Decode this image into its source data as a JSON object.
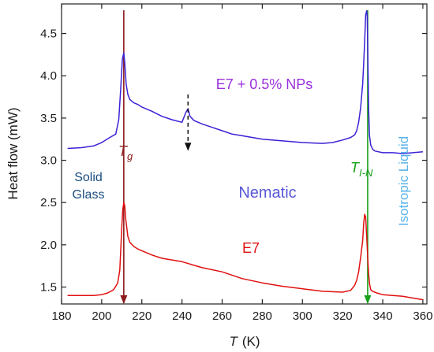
{
  "chart_data": {
    "type": "line",
    "xlabel_symbol": "T",
    "xlabel_unit": "(K)",
    "ylabel": "Heat flow (mW)",
    "xlim": [
      180,
      362
    ],
    "ylim": [
      1.3,
      4.85
    ],
    "x_ticks": [
      "180",
      "200",
      "220",
      "240",
      "260",
      "280",
      "300",
      "320",
      "340",
      "360"
    ],
    "y_ticks": [
      "1.5",
      "2.0",
      "2.5",
      "3.0",
      "3.5",
      "4.0",
      "4.5"
    ],
    "series": [
      {
        "name": "E7 + 0.5% NPs",
        "color": "#3a22d6",
        "x": [
          183,
          190,
          196,
          200,
          204,
          207,
          208.5,
          209.5,
          210.3,
          211,
          211.5,
          212.2,
          213,
          214,
          216,
          218,
          220,
          225,
          230,
          235,
          240,
          242,
          243,
          244,
          246,
          250,
          255,
          260,
          265,
          270,
          280,
          290,
          300,
          310,
          315,
          320,
          324,
          326,
          327,
          328,
          329,
          330,
          330.5,
          331,
          331.5,
          332,
          332.3,
          332.6,
          333,
          333.4,
          334,
          335,
          336,
          338,
          340,
          345,
          350,
          355,
          360
        ],
        "y": [
          3.14,
          3.15,
          3.17,
          3.21,
          3.27,
          3.31,
          3.48,
          3.85,
          4.2,
          4.27,
          4.15,
          3.9,
          3.78,
          3.72,
          3.68,
          3.66,
          3.63,
          3.58,
          3.52,
          3.48,
          3.45,
          3.57,
          3.61,
          3.52,
          3.47,
          3.43,
          3.39,
          3.35,
          3.31,
          3.29,
          3.25,
          3.23,
          3.21,
          3.2,
          3.21,
          3.24,
          3.27,
          3.3,
          3.35,
          3.45,
          3.62,
          3.9,
          4.15,
          4.4,
          4.72,
          4.77,
          4.7,
          4.2,
          3.6,
          3.3,
          3.18,
          3.13,
          3.11,
          3.1,
          3.09,
          3.09,
          3.08,
          3.09,
          3.1
        ],
        "label": "E7 + 0.5% NPs",
        "label_color": "#9a30de"
      },
      {
        "name": "E7",
        "color": "#e01010",
        "x": [
          183,
          190,
          196,
          200,
          203,
          206,
          208,
          209,
          210,
          210.5,
          211,
          211.5,
          212,
          213,
          214,
          216,
          218,
          220,
          225,
          230,
          240,
          250,
          260,
          270,
          280,
          290,
          300,
          310,
          320,
          324,
          326,
          327,
          328,
          329,
          330,
          330.5,
          331,
          331.5,
          332,
          332.5,
          333,
          333.5,
          334,
          335,
          337,
          340,
          345,
          350,
          355,
          360
        ],
        "y": [
          1.4,
          1.4,
          1.4,
          1.41,
          1.43,
          1.47,
          1.55,
          1.7,
          2.2,
          2.42,
          2.5,
          2.46,
          2.3,
          2.1,
          2.03,
          1.98,
          1.95,
          1.93,
          1.88,
          1.84,
          1.8,
          1.73,
          1.68,
          1.6,
          1.55,
          1.51,
          1.48,
          1.45,
          1.44,
          1.46,
          1.52,
          1.58,
          1.68,
          1.85,
          2.05,
          2.25,
          2.36,
          2.33,
          2.1,
          1.85,
          1.65,
          1.53,
          1.47,
          1.45,
          1.43,
          1.41,
          1.4,
          1.39,
          1.37,
          1.35
        ],
        "label": "E7",
        "label_color": "#e01010"
      }
    ],
    "markers": [
      {
        "id": "tg",
        "x": 211,
        "color": "#8b1a1a",
        "label_main": "T",
        "label_sub": "g"
      },
      {
        "id": "tin",
        "x": 332.5,
        "color": "#18a018",
        "label_main": "T",
        "label_sub": "I-N"
      }
    ],
    "dashed_arrow": {
      "x": 243,
      "y_from": 3.78,
      "y_to": 3.12,
      "color": "#111111"
    },
    "region_labels": {
      "solid_line1": "Solid",
      "solid_line2": "Glass",
      "nematic": "Nematic",
      "isotropic": "Isotropic Liquid",
      "solid_color": "#1a4d80",
      "nematic_color": "#5858d8",
      "isotropic_color": "#5ab4ea"
    },
    "grid": false,
    "legend": "none"
  }
}
